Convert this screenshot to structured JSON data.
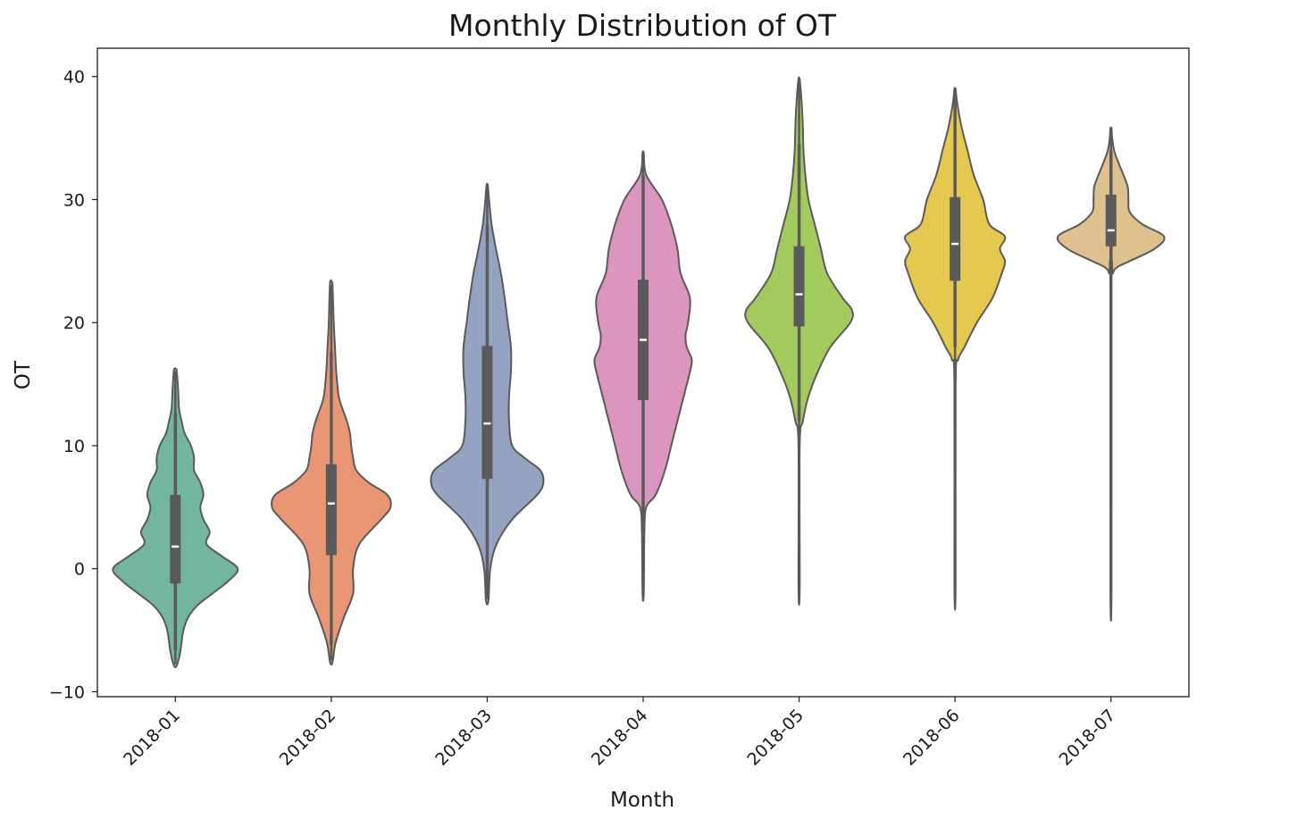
{
  "chart_data": {
    "type": "violin",
    "title": "Monthly Distribution of OT",
    "xlabel": "Month",
    "ylabel": "OT",
    "ylim": [
      -10.4,
      42.3
    ],
    "yticks": [
      -10,
      0,
      10,
      20,
      30,
      40
    ],
    "grid": false,
    "categories": [
      "2018-01",
      "2018-02",
      "2018-03",
      "2018-04",
      "2018-05",
      "2018-06",
      "2018-07"
    ],
    "colors": [
      "#72b6a1",
      "#e99675",
      "#95a3c3",
      "#db96c0",
      "#a2ca5d",
      "#e4c84f",
      "#dfc08f"
    ],
    "outline_color": "#5a5a5a",
    "violins": [
      {
        "category": "2018-01",
        "min": -7.9,
        "max": 16.2,
        "q1": -1.2,
        "median": 1.8,
        "q3": 6.0,
        "whisker_low": -6.6,
        "whisker_high": 12.6,
        "profile": [
          [
            -7.9,
            0.02
          ],
          [
            -7,
            0.07
          ],
          [
            -6,
            0.1
          ],
          [
            -5,
            0.13
          ],
          [
            -4,
            0.2
          ],
          [
            -3,
            0.35
          ],
          [
            -2,
            0.6
          ],
          [
            -1,
            0.85
          ],
          [
            0,
            1.0
          ],
          [
            1,
            0.75
          ],
          [
            2,
            0.5
          ],
          [
            3,
            0.55
          ],
          [
            4,
            0.45
          ],
          [
            5,
            0.4
          ],
          [
            6,
            0.45
          ],
          [
            7,
            0.4
          ],
          [
            8,
            0.3
          ],
          [
            9,
            0.3
          ],
          [
            10,
            0.25
          ],
          [
            11,
            0.15
          ],
          [
            12,
            0.1
          ],
          [
            13,
            0.06
          ],
          [
            14,
            0.05
          ],
          [
            15,
            0.04
          ],
          [
            16.2,
            0.02
          ]
        ]
      },
      {
        "category": "2018-02",
        "min": -7.6,
        "max": 23.2,
        "q1": 1.1,
        "median": 5.3,
        "q3": 8.5,
        "whisker_low": -6.2,
        "whisker_high": 17.6,
        "profile": [
          [
            -7.6,
            0.02
          ],
          [
            -6,
            0.07
          ],
          [
            -4,
            0.2
          ],
          [
            -2,
            0.35
          ],
          [
            0,
            0.35
          ],
          [
            2,
            0.45
          ],
          [
            4,
            0.8
          ],
          [
            5,
            0.95
          ],
          [
            6,
            0.9
          ],
          [
            7,
            0.6
          ],
          [
            8,
            0.4
          ],
          [
            9,
            0.35
          ],
          [
            10,
            0.32
          ],
          [
            11,
            0.3
          ],
          [
            12,
            0.25
          ],
          [
            13,
            0.18
          ],
          [
            14,
            0.12
          ],
          [
            16,
            0.08
          ],
          [
            18,
            0.06
          ],
          [
            20,
            0.04
          ],
          [
            23.2,
            0.02
          ]
        ]
      },
      {
        "category": "2018-03",
        "min": -2.6,
        "max": 31.2,
        "q1": 7.3,
        "median": 11.8,
        "q3": 18.1,
        "whisker_low": -1.4,
        "whisker_high": 28.0,
        "profile": [
          [
            -2.6,
            0.02
          ],
          [
            0,
            0.05
          ],
          [
            2,
            0.15
          ],
          [
            4,
            0.4
          ],
          [
            6,
            0.8
          ],
          [
            7,
            0.9
          ],
          [
            8,
            0.85
          ],
          [
            9,
            0.6
          ],
          [
            10,
            0.4
          ],
          [
            12,
            0.35
          ],
          [
            14,
            0.35
          ],
          [
            16,
            0.38
          ],
          [
            18,
            0.38
          ],
          [
            20,
            0.33
          ],
          [
            22,
            0.28
          ],
          [
            24,
            0.22
          ],
          [
            26,
            0.14
          ],
          [
            28,
            0.07
          ],
          [
            30,
            0.03
          ],
          [
            31.2,
            0.01
          ]
        ]
      },
      {
        "category": "2018-04",
        "min": -2.0,
        "max": 33.8,
        "q1": 13.7,
        "median": 18.6,
        "q3": 23.5,
        "whisker_low": 4.0,
        "whisker_high": 32.0,
        "profile": [
          [
            -2,
            0.01
          ],
          [
            3,
            0.02
          ],
          [
            5,
            0.05
          ],
          [
            6,
            0.2
          ],
          [
            8,
            0.35
          ],
          [
            10,
            0.45
          ],
          [
            12,
            0.55
          ],
          [
            14,
            0.65
          ],
          [
            16,
            0.75
          ],
          [
            17,
            0.78
          ],
          [
            18,
            0.7
          ],
          [
            19,
            0.68
          ],
          [
            20,
            0.72
          ],
          [
            22,
            0.75
          ],
          [
            24,
            0.6
          ],
          [
            26,
            0.55
          ],
          [
            28,
            0.45
          ],
          [
            30,
            0.3
          ],
          [
            32,
            0.05
          ],
          [
            33.8,
            0.01
          ]
        ]
      },
      {
        "category": "2018-05",
        "min": -1.5,
        "max": 39.8,
        "q1": 19.7,
        "median": 22.3,
        "q3": 26.2,
        "whisker_low": 12.0,
        "whisker_high": 34.5,
        "profile": [
          [
            -1.5,
            0.01
          ],
          [
            10,
            0.01
          ],
          [
            12,
            0.06
          ],
          [
            14,
            0.15
          ],
          [
            16,
            0.3
          ],
          [
            18,
            0.5
          ],
          [
            20,
            0.82
          ],
          [
            21,
            0.85
          ],
          [
            22,
            0.7
          ],
          [
            24,
            0.45
          ],
          [
            26,
            0.35
          ],
          [
            28,
            0.25
          ],
          [
            30,
            0.15
          ],
          [
            32,
            0.1
          ],
          [
            34,
            0.07
          ],
          [
            36,
            0.06
          ],
          [
            38,
            0.04
          ],
          [
            39.8,
            0.01
          ]
        ]
      },
      {
        "category": "2018-06",
        "min": -1.3,
        "max": 39.0,
        "q1": 23.4,
        "median": 26.4,
        "q3": 30.2,
        "whisker_low": 18.0,
        "whisker_high": 38.0,
        "profile": [
          [
            -1.3,
            0.01
          ],
          [
            15,
            0.01
          ],
          [
            17,
            0.05
          ],
          [
            18,
            0.15
          ],
          [
            20,
            0.35
          ],
          [
            22,
            0.6
          ],
          [
            24,
            0.75
          ],
          [
            25,
            0.8
          ],
          [
            26,
            0.72
          ],
          [
            27,
            0.8
          ],
          [
            28,
            0.55
          ],
          [
            30,
            0.45
          ],
          [
            32,
            0.3
          ],
          [
            34,
            0.2
          ],
          [
            36,
            0.1
          ],
          [
            38,
            0.03
          ],
          [
            39,
            0.01
          ]
        ]
      },
      {
        "category": "2018-07",
        "min": -1.2,
        "max": 35.8,
        "q1": 26.2,
        "median": 27.5,
        "q3": 30.4,
        "whisker_low": 25.0,
        "whisker_high": 34.0,
        "profile": [
          [
            -1.2,
            0.01
          ],
          [
            23,
            0.01
          ],
          [
            24,
            0.03
          ],
          [
            24.5,
            0.1
          ],
          [
            25,
            0.3
          ],
          [
            26,
            0.7
          ],
          [
            27,
            0.85
          ],
          [
            28,
            0.5
          ],
          [
            29,
            0.3
          ],
          [
            30,
            0.28
          ],
          [
            31,
            0.27
          ],
          [
            32,
            0.2
          ],
          [
            33,
            0.12
          ],
          [
            34,
            0.05
          ],
          [
            35,
            0.02
          ],
          [
            35.8,
            0.01
          ]
        ]
      }
    ]
  }
}
